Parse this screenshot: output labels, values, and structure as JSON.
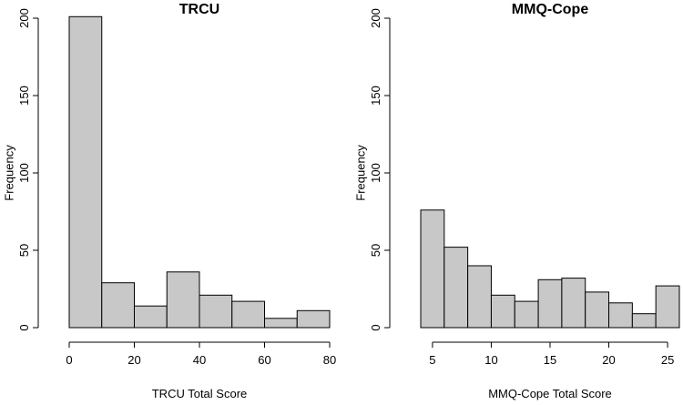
{
  "chart_data": [
    {
      "type": "bar",
      "title": "TRCU",
      "xlabel": "TRCU Total Score",
      "ylabel": "Frequency",
      "bin_edges": [
        0,
        10,
        20,
        30,
        40,
        50,
        60,
        70,
        80
      ],
      "values": [
        201,
        29,
        14,
        36,
        21,
        17,
        6,
        11
      ],
      "xticks": [
        0,
        20,
        40,
        60,
        80
      ],
      "xlim": [
        0,
        80
      ],
      "yticks": [
        0,
        50,
        100,
        150,
        200
      ],
      "ylim": [
        0,
        200
      ],
      "grid": false,
      "bar_color": "#c8c8c8"
    },
    {
      "type": "bar",
      "title": "MMQ-Cope",
      "xlabel": "MMQ-Cope Total Score",
      "ylabel": "Frequency",
      "bin_edges": [
        4,
        6,
        8,
        10,
        12,
        14,
        16,
        18,
        20,
        22,
        24,
        26
      ],
      "values": [
        76,
        52,
        40,
        21,
        17,
        31,
        32,
        23,
        16,
        9,
        27
      ],
      "xticks": [
        5,
        10,
        15,
        20,
        25
      ],
      "xlim": [
        4,
        26
      ],
      "yticks": [
        0,
        50,
        100,
        150,
        200
      ],
      "ylim": [
        0,
        200
      ],
      "grid": false,
      "bar_color": "#c8c8c8"
    }
  ]
}
